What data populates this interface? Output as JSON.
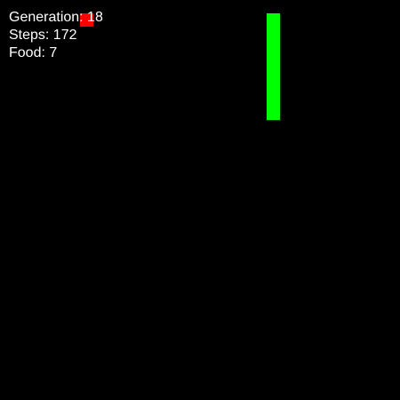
{
  "hud": {
    "generation": "Generation: 18",
    "steps": "Steps: 172",
    "food": "Food: 7"
  },
  "colors": {
    "background": "#000000",
    "snake": "#00ff00",
    "food": "#ff0000",
    "text": "#ffffff"
  }
}
